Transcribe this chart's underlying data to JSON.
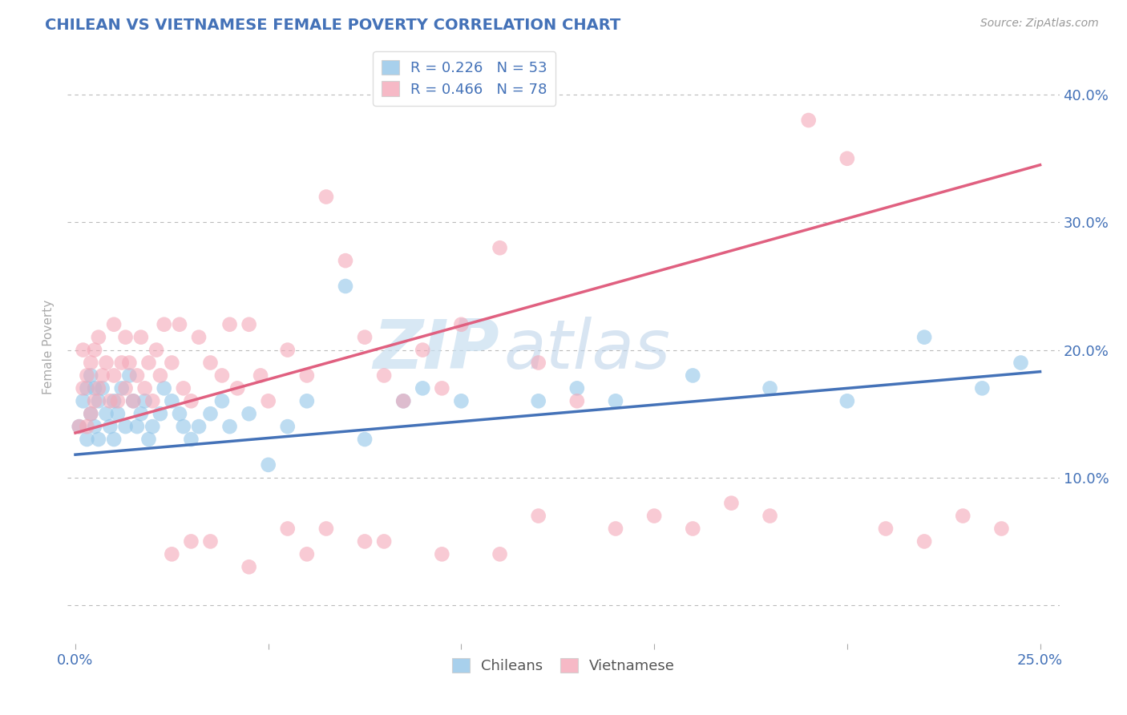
{
  "title": "CHILEAN VS VIETNAMESE FEMALE POVERTY CORRELATION CHART",
  "source": "Source: ZipAtlas.com",
  "ylabel": "Female Poverty",
  "xlim": [
    -0.002,
    0.255
  ],
  "ylim": [
    -0.03,
    0.435
  ],
  "xtick_vals": [
    0.0,
    0.05,
    0.1,
    0.15,
    0.2,
    0.25
  ],
  "xticklabels": [
    "0.0%",
    "",
    "",
    "",
    "",
    "25.0%"
  ],
  "ytick_vals": [
    0.0,
    0.1,
    0.2,
    0.3,
    0.4
  ],
  "yticklabels_right": [
    "",
    "10.0%",
    "20.0%",
    "30.0%",
    "40.0%"
  ],
  "chilean_color": "#92c5e8",
  "vietnamese_color": "#f4a8b8",
  "chilean_line_color": "#4472b8",
  "vietnamese_line_color": "#e06080",
  "R_chilean": 0.226,
  "N_chilean": 53,
  "R_vietnamese": 0.466,
  "N_vietnamese": 78,
  "background_color": "#ffffff",
  "grid_color": "#bbbbbb",
  "title_color": "#4472b8",
  "source_color": "#999999",
  "axis_label_color": "#aaaaaa",
  "tick_label_color": "#4472b8",
  "watermark_zip": "ZIP",
  "watermark_atlas": "atlas",
  "chi_line_x0": 0.0,
  "chi_line_y0": 0.118,
  "chi_line_x1": 0.25,
  "chi_line_y1": 0.183,
  "viet_line_x0": 0.0,
  "viet_line_y0": 0.135,
  "viet_line_x1": 0.25,
  "viet_line_y1": 0.345,
  "chi_x": [
    0.001,
    0.002,
    0.003,
    0.003,
    0.004,
    0.004,
    0.005,
    0.005,
    0.006,
    0.006,
    0.007,
    0.008,
    0.009,
    0.01,
    0.01,
    0.011,
    0.012,
    0.013,
    0.014,
    0.015,
    0.016,
    0.017,
    0.018,
    0.019,
    0.02,
    0.022,
    0.023,
    0.025,
    0.027,
    0.028,
    0.03,
    0.032,
    0.035,
    0.038,
    0.04,
    0.045,
    0.05,
    0.055,
    0.06,
    0.07,
    0.075,
    0.085,
    0.09,
    0.1,
    0.12,
    0.13,
    0.14,
    0.16,
    0.18,
    0.2,
    0.22,
    0.235,
    0.245
  ],
  "chi_y": [
    0.14,
    0.16,
    0.13,
    0.17,
    0.15,
    0.18,
    0.14,
    0.17,
    0.13,
    0.16,
    0.17,
    0.15,
    0.14,
    0.13,
    0.16,
    0.15,
    0.17,
    0.14,
    0.18,
    0.16,
    0.14,
    0.15,
    0.16,
    0.13,
    0.14,
    0.15,
    0.17,
    0.16,
    0.15,
    0.14,
    0.13,
    0.14,
    0.15,
    0.16,
    0.14,
    0.15,
    0.11,
    0.14,
    0.16,
    0.25,
    0.13,
    0.16,
    0.17,
    0.16,
    0.16,
    0.17,
    0.16,
    0.18,
    0.17,
    0.16,
    0.21,
    0.17,
    0.19
  ],
  "viet_x": [
    0.001,
    0.002,
    0.002,
    0.003,
    0.003,
    0.004,
    0.004,
    0.005,
    0.005,
    0.006,
    0.006,
    0.007,
    0.008,
    0.009,
    0.01,
    0.01,
    0.011,
    0.012,
    0.013,
    0.013,
    0.014,
    0.015,
    0.016,
    0.017,
    0.018,
    0.019,
    0.02,
    0.021,
    0.022,
    0.023,
    0.025,
    0.027,
    0.028,
    0.03,
    0.032,
    0.035,
    0.038,
    0.04,
    0.042,
    0.045,
    0.048,
    0.05,
    0.055,
    0.06,
    0.065,
    0.07,
    0.075,
    0.08,
    0.085,
    0.09,
    0.095,
    0.1,
    0.11,
    0.12,
    0.13,
    0.14,
    0.15,
    0.16,
    0.17,
    0.18,
    0.19,
    0.2,
    0.21,
    0.22,
    0.23,
    0.24,
    0.12,
    0.065,
    0.075,
    0.11,
    0.055,
    0.035,
    0.025,
    0.03,
    0.045,
    0.06,
    0.08,
    0.095
  ],
  "viet_y": [
    0.14,
    0.17,
    0.2,
    0.14,
    0.18,
    0.15,
    0.19,
    0.16,
    0.2,
    0.17,
    0.21,
    0.18,
    0.19,
    0.16,
    0.18,
    0.22,
    0.16,
    0.19,
    0.17,
    0.21,
    0.19,
    0.16,
    0.18,
    0.21,
    0.17,
    0.19,
    0.16,
    0.2,
    0.18,
    0.22,
    0.19,
    0.22,
    0.17,
    0.16,
    0.21,
    0.19,
    0.18,
    0.22,
    0.17,
    0.22,
    0.18,
    0.16,
    0.2,
    0.18,
    0.32,
    0.27,
    0.21,
    0.18,
    0.16,
    0.2,
    0.17,
    0.22,
    0.28,
    0.19,
    0.16,
    0.06,
    0.07,
    0.06,
    0.08,
    0.07,
    0.38,
    0.35,
    0.06,
    0.05,
    0.07,
    0.06,
    0.07,
    0.06,
    0.05,
    0.04,
    0.06,
    0.05,
    0.04,
    0.05,
    0.03,
    0.04,
    0.05,
    0.04
  ]
}
